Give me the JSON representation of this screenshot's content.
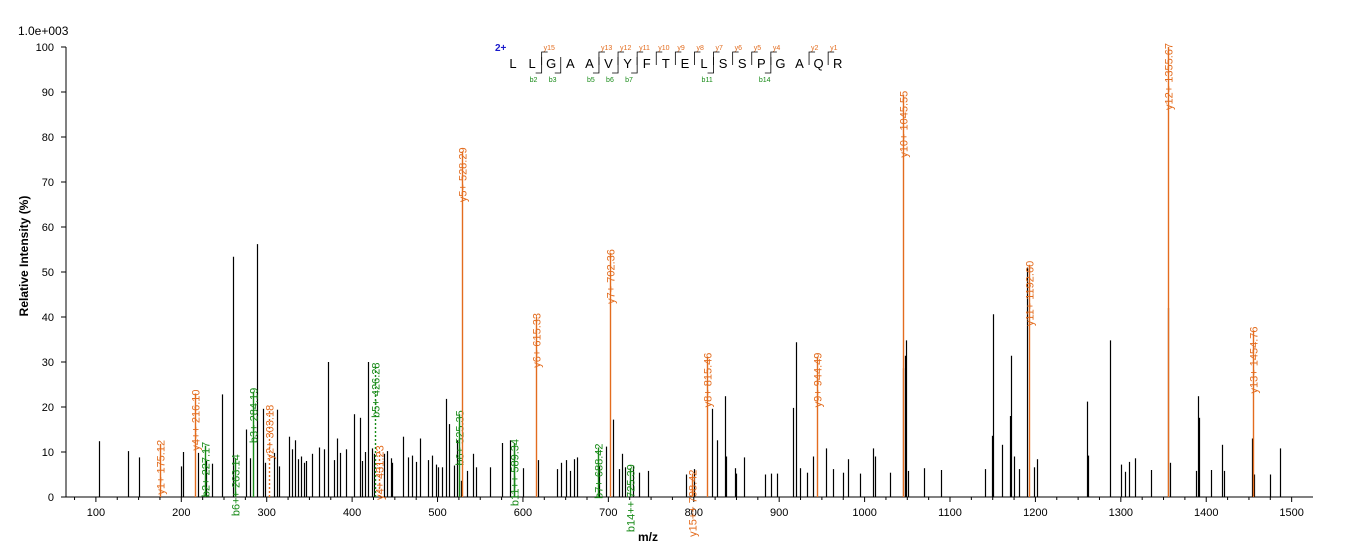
{
  "chart_data": {
    "type": "bar",
    "scale_label": "1.0e+003",
    "xlabel": "m/z",
    "ylabel": "Relative   Intensity (%)",
    "xlim": [
      65,
      1525
    ],
    "ylim": [
      0,
      100
    ],
    "x_ticks": [
      100,
      200,
      300,
      400,
      500,
      600,
      700,
      800,
      900,
      1000,
      1100,
      1200,
      1300,
      1400,
      1500
    ],
    "y_ticks": [
      0,
      10,
      20,
      30,
      40,
      50,
      60,
      70,
      80,
      90,
      100
    ],
    "colors": {
      "y_ion": "#e36c1e",
      "b_ion": "#178a17",
      "peak": "#000000",
      "charge": "#1a1acc"
    },
    "peaks": [
      [
        104,
        12.4
      ],
      [
        138,
        10.2
      ],
      [
        151,
        8.8
      ],
      [
        200,
        6.8
      ],
      [
        202,
        10.0
      ],
      [
        219,
        9.8
      ],
      [
        229,
        8.0
      ],
      [
        236,
        7.4
      ],
      [
        248,
        22.8
      ],
      [
        261,
        53.4
      ],
      [
        276,
        15.0
      ],
      [
        280,
        8.6
      ],
      [
        289,
        56.2
      ],
      [
        296,
        19.6
      ],
      [
        298,
        7.6
      ],
      [
        309,
        9.8
      ],
      [
        312,
        19.4
      ],
      [
        314,
        6.8
      ],
      [
        326,
        13.4
      ],
      [
        330,
        10.6
      ],
      [
        333,
        12.6
      ],
      [
        337,
        8.4
      ],
      [
        340,
        9.0
      ],
      [
        344,
        7.6
      ],
      [
        346,
        8.0
      ],
      [
        353,
        9.6
      ],
      [
        361,
        11.0
      ],
      [
        367,
        10.6
      ],
      [
        372,
        30.0
      ],
      [
        379,
        8.2
      ],
      [
        382,
        13.0
      ],
      [
        386,
        9.8
      ],
      [
        393,
        10.6
      ],
      [
        402,
        18.4
      ],
      [
        409,
        17.6
      ],
      [
        412,
        8.0
      ],
      [
        415,
        10.0
      ],
      [
        418,
        30.0
      ],
      [
        423,
        10.8
      ],
      [
        426,
        9.6
      ],
      [
        437,
        9.6
      ],
      [
        441,
        10.2
      ],
      [
        445,
        8.6
      ],
      [
        447,
        7.6
      ],
      [
        460,
        13.4
      ],
      [
        465,
        8.8
      ],
      [
        470,
        9.2
      ],
      [
        475,
        7.8
      ],
      [
        480,
        13.0
      ],
      [
        489,
        8.2
      ],
      [
        494,
        9.2
      ],
      [
        498,
        7.2
      ],
      [
        501,
        6.6
      ],
      [
        505,
        6.6
      ],
      [
        510,
        21.8
      ],
      [
        513,
        16.2
      ],
      [
        519,
        7.0
      ],
      [
        523,
        12.6
      ],
      [
        528,
        3.6
      ],
      [
        534,
        5.8
      ],
      [
        542,
        9.6
      ],
      [
        545,
        6.6
      ],
      [
        561,
        6.6
      ],
      [
        575,
        12.0
      ],
      [
        585,
        12.6
      ],
      [
        589,
        11.6
      ],
      [
        600,
        6.4
      ],
      [
        618,
        8.2
      ],
      [
        640,
        6.2
      ],
      [
        645,
        7.6
      ],
      [
        650,
        8.2
      ],
      [
        655,
        5.8
      ],
      [
        660,
        8.4
      ],
      [
        663,
        8.8
      ],
      [
        689,
        6.8
      ],
      [
        697,
        11.2
      ],
      [
        705,
        17.2
      ],
      [
        712,
        6.2
      ],
      [
        716,
        9.6
      ],
      [
        720,
        6.6
      ],
      [
        729,
        7.0
      ],
      [
        736,
        5.4
      ],
      [
        746,
        5.8
      ],
      [
        791,
        5.0
      ],
      [
        800,
        6.2
      ],
      [
        821,
        19.6
      ],
      [
        827,
        12.6
      ],
      [
        836,
        22.4
      ],
      [
        838,
        9.0
      ],
      [
        848,
        6.4
      ],
      [
        850,
        5.2
      ],
      [
        859,
        8.8
      ],
      [
        883,
        5.0
      ],
      [
        890,
        5.2
      ],
      [
        898,
        5.2
      ],
      [
        916,
        19.8
      ],
      [
        920,
        34.4
      ],
      [
        924,
        6.4
      ],
      [
        933,
        5.4
      ],
      [
        940,
        9.0
      ],
      [
        955,
        10.8
      ],
      [
        963,
        6.2
      ],
      [
        975,
        5.4
      ],
      [
        980,
        8.4
      ],
      [
        995,
        5.2
      ],
      [
        1010,
        10.8
      ],
      [
        1012,
        9.0
      ],
      [
        1030,
        5.4
      ],
      [
        1045,
        28.6
      ],
      [
        1047,
        31.4
      ],
      [
        1048,
        34.8
      ],
      [
        1051,
        5.8
      ],
      [
        1070,
        6.4
      ],
      [
        1090,
        6.0
      ],
      [
        1141,
        6.2
      ],
      [
        1149,
        13.6
      ],
      [
        1150,
        40.6
      ],
      [
        1161,
        11.6
      ],
      [
        1170,
        18.0
      ],
      [
        1172,
        31.4
      ],
      [
        1175,
        9.0
      ],
      [
        1181,
        6.2
      ],
      [
        1190,
        51.0
      ],
      [
        1198,
        6.6
      ],
      [
        1202,
        8.4
      ],
      [
        1260,
        21.2
      ],
      [
        1262,
        9.2
      ],
      [
        1287,
        34.8
      ],
      [
        1300,
        7.2
      ],
      [
        1305,
        5.6
      ],
      [
        1310,
        7.8
      ],
      [
        1317,
        8.6
      ],
      [
        1335,
        6.0
      ],
      [
        1355,
        42.0
      ],
      [
        1357,
        7.6
      ],
      [
        1388,
        5.8
      ],
      [
        1390,
        22.4
      ],
      [
        1391,
        17.6
      ],
      [
        1405,
        6.0
      ],
      [
        1419,
        11.6
      ],
      [
        1421,
        5.8
      ],
      [
        1454,
        13.0
      ],
      [
        1456,
        5.0
      ],
      [
        1475,
        5.0
      ],
      [
        1486,
        10.8
      ]
    ],
    "annotations": [
      {
        "x": 175.12,
        "y": 11.8,
        "ion": "y",
        "label": "y1+ 175.12"
      },
      {
        "x": 216.1,
        "y": 23.0,
        "ion": "y",
        "label": "y4++ 216.10"
      },
      {
        "x": 227.17,
        "y": 11.4,
        "ion": "b",
        "label": "b2+ 227.17"
      },
      {
        "x": 263.14,
        "y": 8.6,
        "ion": "b",
        "label": "b6++ 263.14"
      },
      {
        "x": 284.19,
        "y": 23.4,
        "ion": "b",
        "label": "b3+ 284.19"
      },
      {
        "x": 303.18,
        "y": 19.6,
        "ion": "y",
        "label": "y2+ 303.18",
        "dashed": true
      },
      {
        "x": 426.28,
        "y": 29.0,
        "ion": "b",
        "label": "b5+ 426.28",
        "dashed": true
      },
      {
        "x": 431.23,
        "y": 10.6,
        "ion": "y",
        "label": "y4+ 431.23",
        "dashed": true
      },
      {
        "x": 525.35,
        "y": 18.4,
        "ion": "b",
        "label": "b6+ 525.35"
      },
      {
        "x": 528.29,
        "y": 76.8,
        "ion": "y",
        "label": "y5+ 528.29"
      },
      {
        "x": 589.34,
        "y": 12.0,
        "ion": "b",
        "label": "b11++ 589.34"
      },
      {
        "x": 615.33,
        "y": 40.0,
        "ion": "y",
        "label": "y6+ 615.33"
      },
      {
        "x": 688.42,
        "y": 11.0,
        "ion": "b",
        "label": "b7+ 688.42"
      },
      {
        "x": 702.36,
        "y": 54.2,
        "ion": "y",
        "label": "y7+ 702.36"
      },
      {
        "x": 725.39,
        "y": 6.4,
        "ion": "b",
        "label": "b14++ 725.39"
      },
      {
        "x": 798.42,
        "y": 5.2,
        "ion": "y",
        "label": "y15++ 798.42"
      },
      {
        "x": 815.46,
        "y": 31.2,
        "ion": "y",
        "label": "y8+ 815.46"
      },
      {
        "x": 944.49,
        "y": 31.2,
        "ion": "y",
        "label": "y9+ 944.49"
      },
      {
        "x": 1045.55,
        "y": 89.4,
        "ion": "y",
        "label": "y10+ 1045.55"
      },
      {
        "x": 1192.6,
        "y": 51.6,
        "ion": "y",
        "label": "y11+ 1192.60"
      },
      {
        "x": 1355.67,
        "y": 100.0,
        "ion": "y",
        "label": "y12+ 1355.67"
      },
      {
        "x": 1454.76,
        "y": 37.0,
        "ion": "y",
        "label": "y13+ 1454.76"
      }
    ],
    "sequence": {
      "charge": "2+",
      "residues": [
        "L",
        "L",
        "G",
        "A",
        "A",
        "V",
        "Y",
        "F",
        "T",
        "E",
        "L",
        "S",
        "S",
        "P",
        "G",
        "A",
        "Q",
        "R"
      ],
      "y_marks": [
        {
          "after": 2,
          "label": "y15"
        },
        {
          "after": 5,
          "label": "y13"
        },
        {
          "after": 6,
          "label": "y12"
        },
        {
          "after": 7,
          "label": "y11"
        },
        {
          "after": 8,
          "label": "y10"
        },
        {
          "after": 9,
          "label": "y9"
        },
        {
          "after": 10,
          "label": "y8"
        },
        {
          "after": 11,
          "label": "y7"
        },
        {
          "after": 12,
          "label": "y6"
        },
        {
          "after": 13,
          "label": "y5"
        },
        {
          "after": 14,
          "label": "y4"
        },
        {
          "after": 16,
          "label": "y2"
        },
        {
          "after": 17,
          "label": "y1"
        }
      ],
      "b_marks": [
        {
          "after": 2,
          "label": "b2"
        },
        {
          "after": 3,
          "label": "b3"
        },
        {
          "after": 5,
          "label": "b5"
        },
        {
          "after": 6,
          "label": "b6"
        },
        {
          "after": 7,
          "label": "b7"
        },
        {
          "after": 11,
          "label": "b11"
        },
        {
          "after": 14,
          "label": "b14"
        }
      ]
    }
  }
}
